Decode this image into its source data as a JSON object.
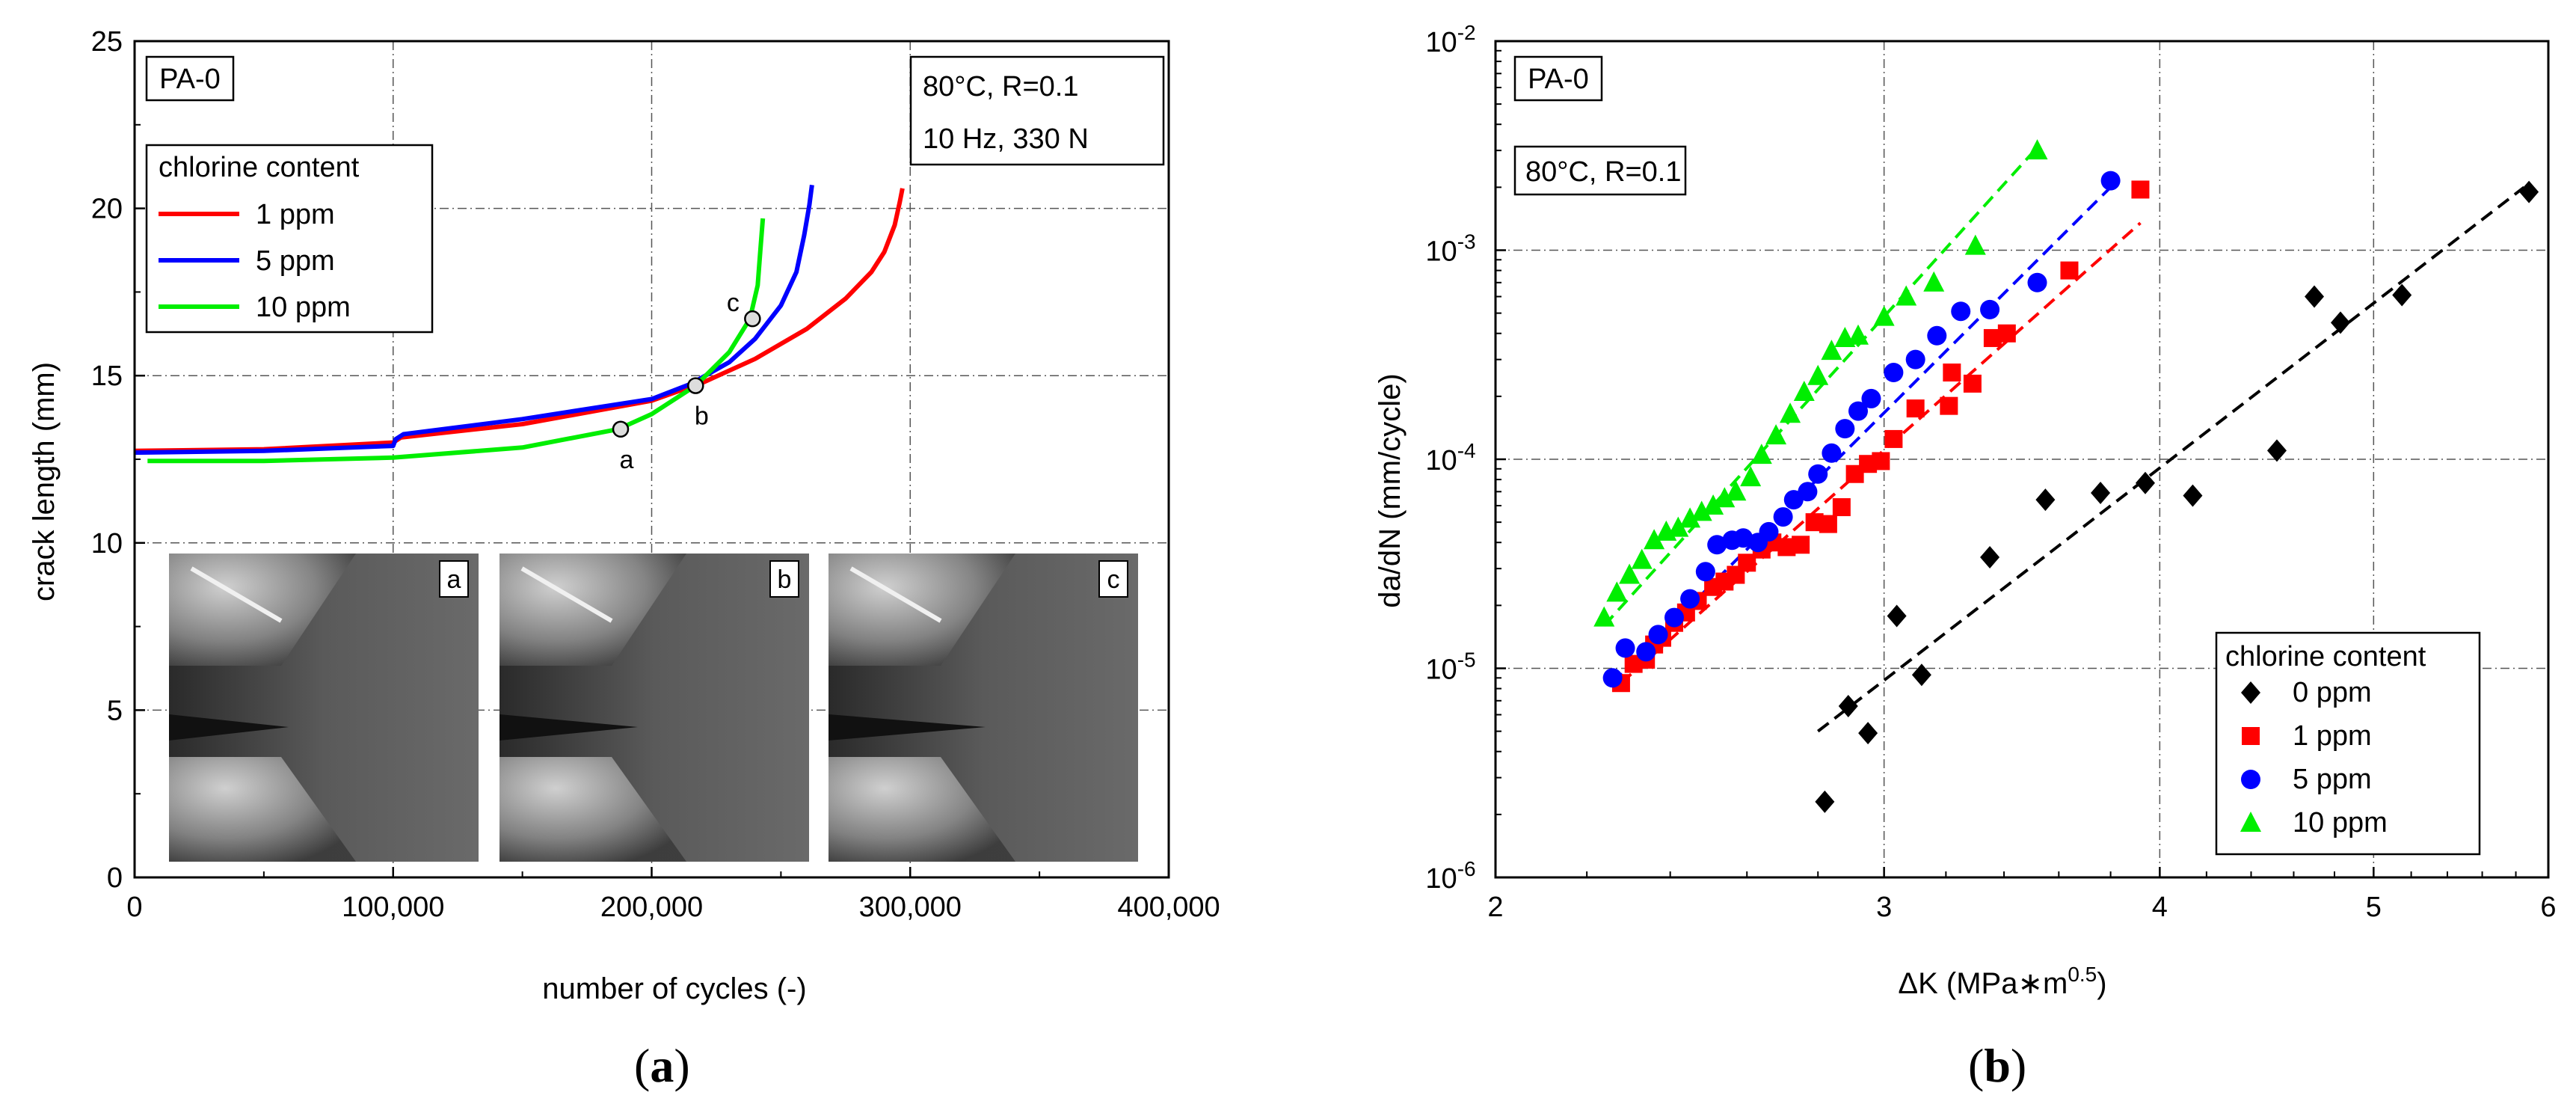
{
  "captions": {
    "a": "a",
    "b": "b"
  },
  "chart_data": [
    {
      "id": "a",
      "type": "line",
      "title": "",
      "xlabel": "number of cycles (-)",
      "ylabel": "crack length (mm)",
      "xlim": [
        0,
        400000
      ],
      "ylim": [
        0,
        25
      ],
      "xticks": [
        0,
        100000,
        200000,
        300000,
        400000
      ],
      "xtick_labels": [
        "0",
        "100,000",
        "200,000",
        "300,000",
        "400,000"
      ],
      "yticks": [
        0,
        5,
        10,
        15,
        20,
        25
      ],
      "ytick_labels": [
        "0",
        "5",
        "10",
        "15",
        "20",
        "25"
      ],
      "grid": true,
      "annotations": {
        "material": "PA-0",
        "conditions": [
          "80°C, R=0.1",
          "10 Hz, 330 N"
        ]
      },
      "legend": {
        "title": "chlorine content",
        "position": "top-left",
        "entries": [
          "1 ppm",
          "5 ppm",
          "10 ppm"
        ]
      },
      "series": [
        {
          "name": "1 ppm",
          "color": "#ff0000",
          "points": [
            [
              0,
              12.75
            ],
            [
              50000,
              12.8
            ],
            [
              100000,
              13.0
            ],
            [
              101000,
              13.05
            ],
            [
              103000,
              13.15
            ],
            [
              150000,
              13.55
            ],
            [
              200000,
              14.25
            ],
            [
              220000,
              14.8
            ],
            [
              240000,
              15.5
            ],
            [
              260000,
              16.4
            ],
            [
              275000,
              17.3
            ],
            [
              285000,
              18.1
            ],
            [
              290000,
              18.7
            ],
            [
              294000,
              19.5
            ],
            [
              296000,
              20.2
            ],
            [
              297000,
              20.6
            ]
          ]
        },
        {
          "name": "5 ppm",
          "color": "#0000ff",
          "points": [
            [
              0,
              12.7
            ],
            [
              50000,
              12.75
            ],
            [
              100000,
              12.9
            ],
            [
              101000,
              13.1
            ],
            [
              104000,
              13.25
            ],
            [
              150000,
              13.7
            ],
            [
              200000,
              14.3
            ],
            [
              215000,
              14.75
            ],
            [
              230000,
              15.4
            ],
            [
              240000,
              16.1
            ],
            [
              250000,
              17.1
            ],
            [
              256000,
              18.1
            ],
            [
              259000,
              19.2
            ],
            [
              261000,
              20.1
            ],
            [
              262000,
              20.7
            ]
          ]
        },
        {
          "name": "10 ppm",
          "color": "#00ee00",
          "points": [
            [
              5000,
              12.45
            ],
            [
              50000,
              12.45
            ],
            [
              100000,
              12.55
            ],
            [
              150000,
              12.85
            ],
            [
              187000,
              13.4
            ],
            [
              200000,
              13.85
            ],
            [
              217000,
              14.7
            ],
            [
              230000,
              15.7
            ],
            [
              238000,
              16.7
            ],
            [
              241000,
              17.7
            ],
            [
              242000,
              18.7
            ],
            [
              243000,
              19.7
            ]
          ]
        }
      ],
      "markers": [
        {
          "label": "a",
          "x": 188000,
          "y": 13.4
        },
        {
          "label": "b",
          "x": 217000,
          "y": 14.7
        },
        {
          "label": "c",
          "x": 239000,
          "y": 16.7
        }
      ],
      "inset_images": [
        "a",
        "b",
        "c"
      ]
    },
    {
      "id": "b",
      "type": "scatter",
      "title": "",
      "xlabel": "ΔK (MPa∗m",
      "xlabel_sup": "0.5",
      "xlabel_end": ")",
      "ylabel": "da/dN (mm/cycle)",
      "xscale": "log",
      "yscale": "log",
      "xlim": [
        2,
        6
      ],
      "ylim": [
        1e-06,
        0.01
      ],
      "xticks": [
        2,
        3,
        4,
        5,
        6
      ],
      "xtick_labels": [
        "2",
        "3",
        "4",
        "5",
        "6"
      ],
      "yticks": [
        1e-06,
        1e-05,
        0.0001,
        0.001,
        0.01
      ],
      "ytick_labels": [
        {
          "base": "10",
          "exp": "-6"
        },
        {
          "base": "10",
          "exp": "-5"
        },
        {
          "base": "10",
          "exp": "-4"
        },
        {
          "base": "10",
          "exp": "-3"
        },
        {
          "base": "10",
          "exp": "-2"
        }
      ],
      "grid": true,
      "annotations": {
        "material": "PA-0",
        "conditions": [
          "80°C, R=0.1"
        ]
      },
      "legend": {
        "title": "chlorine content",
        "position": "bottom-right",
        "entries": [
          "0 ppm",
          "1 ppm",
          "5 ppm",
          "10 ppm"
        ]
      },
      "series": [
        {
          "name": "0 ppm",
          "color": "#000000",
          "marker": "diamond",
          "points": [
            [
              2.82,
              2.3e-06
            ],
            [
              2.89,
              6.6e-06
            ],
            [
              2.95,
              4.9e-06
            ],
            [
              3.04,
              1.78e-05
            ],
            [
              3.12,
              9.3e-06
            ],
            [
              3.35,
              3.4e-05
            ],
            [
              3.55,
              6.4e-05
            ],
            [
              3.76,
              6.9e-05
            ],
            [
              3.94,
              7.7e-05
            ],
            [
              4.14,
              6.7e-05
            ],
            [
              4.52,
              0.00011
            ],
            [
              4.7,
              0.0006
            ],
            [
              4.83,
              0.00045
            ],
            [
              5.15,
              0.00061
            ],
            [
              5.88,
              0.0019
            ]
          ],
          "fit": [
            [
              2.8,
              5e-06
            ],
            [
              5.85,
              0.002
            ]
          ]
        },
        {
          "name": "1 ppm",
          "color": "#ff0000",
          "marker": "square",
          "points": [
            [
              2.28,
              8.5e-06
            ],
            [
              2.31,
              1.05e-05
            ],
            [
              2.34,
              1.1e-05
            ],
            [
              2.36,
              1.3e-05
            ],
            [
              2.38,
              1.4e-05
            ],
            [
              2.41,
              1.65e-05
            ],
            [
              2.44,
              1.85e-05
            ],
            [
              2.47,
              2.1e-05
            ],
            [
              2.51,
              2.45e-05
            ],
            [
              2.54,
              2.6e-05
            ],
            [
              2.57,
              2.8e-05
            ],
            [
              2.6,
              3.2e-05
            ],
            [
              2.64,
              3.7e-05
            ],
            [
              2.67,
              4e-05
            ],
            [
              2.71,
              3.8e-05
            ],
            [
              2.75,
              3.9e-05
            ],
            [
              2.79,
              5e-05
            ],
            [
              2.83,
              4.9e-05
            ],
            [
              2.87,
              5.9e-05
            ],
            [
              2.91,
              8.5e-05
            ],
            [
              2.95,
              9.5e-05
            ],
            [
              2.99,
              9.8e-05
            ],
            [
              3.03,
              0.000125
            ],
            [
              3.1,
              0.000175
            ],
            [
              3.21,
              0.00018
            ],
            [
              3.22,
              0.00026
            ],
            [
              3.29,
              0.00023
            ],
            [
              3.36,
              0.00038
            ],
            [
              3.41,
              0.0004
            ],
            [
              3.64,
              0.0008
            ],
            [
              3.92,
              0.00195
            ]
          ],
          "fit": [
            [
              2.28,
              8.5e-06
            ],
            [
              3.92,
              0.00135
            ]
          ]
        },
        {
          "name": "5 ppm",
          "color": "#0000ff",
          "marker": "circle",
          "points": [
            [
              2.26,
              9e-06
            ],
            [
              2.29,
              1.25e-05
            ],
            [
              2.34,
              1.2e-05
            ],
            [
              2.37,
              1.45e-05
            ],
            [
              2.41,
              1.75e-05
            ],
            [
              2.45,
              2.15e-05
            ],
            [
              2.49,
              2.9e-05
            ],
            [
              2.52,
              3.9e-05
            ],
            [
              2.56,
              4.1e-05
            ],
            [
              2.59,
              4.2e-05
            ],
            [
              2.63,
              4e-05
            ],
            [
              2.66,
              4.5e-05
            ],
            [
              2.7,
              5.3e-05
            ],
            [
              2.73,
              6.4e-05
            ],
            [
              2.77,
              7e-05
            ],
            [
              2.8,
              8.5e-05
            ],
            [
              2.84,
              0.000107
            ],
            [
              2.88,
              0.00014
            ],
            [
              2.92,
              0.00017
            ],
            [
              2.96,
              0.000195
            ],
            [
              3.03,
              0.00026
            ],
            [
              3.1,
              0.0003
            ],
            [
              3.17,
              0.00039
            ],
            [
              3.25,
              0.00051
            ],
            [
              3.35,
              0.00052
            ],
            [
              3.52,
              0.0007
            ],
            [
              3.8,
              0.00215
            ]
          ],
          "fit": [
            [
              2.26,
              8.5e-06
            ],
            [
              3.8,
              0.002
            ]
          ]
        },
        {
          "name": "10 ppm",
          "color": "#00ee00",
          "marker": "triangle",
          "points": [
            [
              2.24,
              1.75e-05
            ],
            [
              2.27,
              2.3e-05
            ],
            [
              2.3,
              2.8e-05
            ],
            [
              2.33,
              3.3e-05
            ],
            [
              2.36,
              4.1e-05
            ],
            [
              2.39,
              4.5e-05
            ],
            [
              2.42,
              4.7e-05
            ],
            [
              2.45,
              5.2e-05
            ],
            [
              2.48,
              5.6e-05
            ],
            [
              2.51,
              6e-05
            ],
            [
              2.54,
              6.5e-05
            ],
            [
              2.57,
              7e-05
            ],
            [
              2.61,
              8.2e-05
            ],
            [
              2.64,
              0.000105
            ],
            [
              2.68,
              0.00013
            ],
            [
              2.72,
              0.000165
            ],
            [
              2.76,
              0.00021
            ],
            [
              2.8,
              0.00025
            ],
            [
              2.84,
              0.00033
            ],
            [
              2.88,
              0.00038
            ],
            [
              2.92,
              0.00039
            ],
            [
              3.0,
              0.00048
            ],
            [
              3.07,
              0.0006
            ],
            [
              3.16,
              0.0007
            ],
            [
              3.3,
              0.00105
            ],
            [
              3.52,
              0.003
            ]
          ],
          "fit": [
            [
              2.24,
              1.6e-05
            ],
            [
              3.52,
              0.0031
            ]
          ]
        }
      ]
    }
  ]
}
